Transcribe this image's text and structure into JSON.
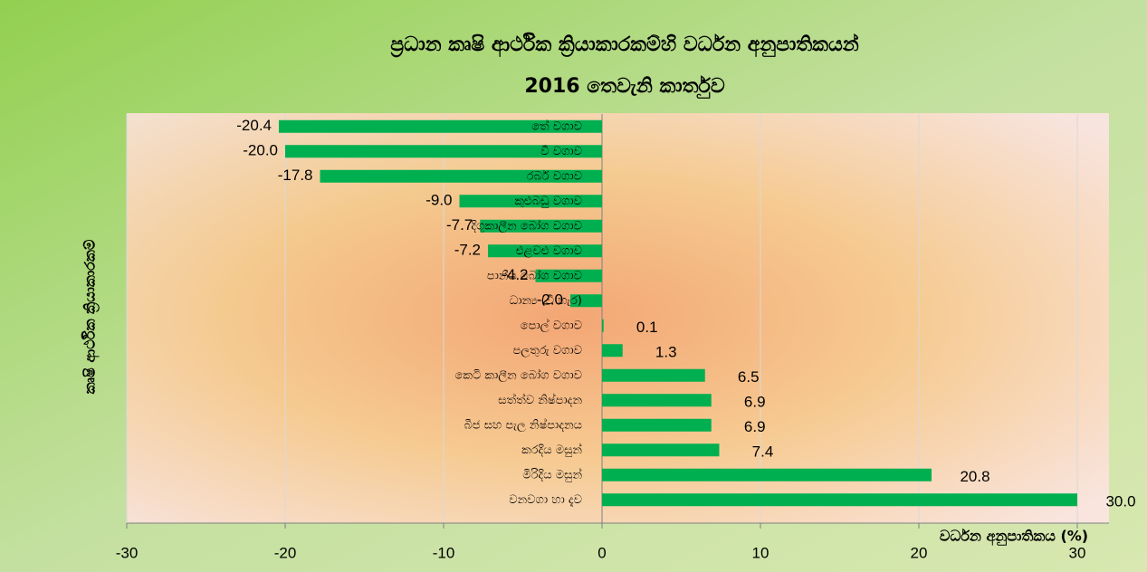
{
  "chart_data": {
    "type": "barh",
    "title": "ප්‍රධාන කෘෂි ආර්ථික ක්‍රියාකාරකම්හි  වර්ධන අනුපාතිකයන්",
    "subtitle": "2016 තෙවැනි කාර්තුව",
    "x_label": "වර්ධන අනුපාතිකය (%)",
    "y_label": "කෘෂි ආර්ථික ක්‍රියාකාරකම්",
    "categories": [
      "තේ වගාව",
      "වී වගාව",
      "රබර් වගාව",
      "කුළුබඩු වගාව",
      "දිගුකාලීන බෝග වගාව",
      "එළවළු වගාව",
      "පානීය බෝග වගාව",
      "ධාන්‍ය (වී හැර)",
      "පොල් වගාව",
      "පලතුරු වගාව",
      "කෙටි කාලීන බෝග වගාව",
      "සත්ත්ව නිෂ්පාදන",
      "බීජ සහ පැල නිෂ්පාදනය",
      "කරදිය මසුන්",
      "මිරිදිය මසුන්",
      "වනවගා හා දැව"
    ],
    "values": [
      -20.4,
      -20.0,
      -17.8,
      -9.0,
      -7.7,
      -7.2,
      -4.2,
      -2.0,
      0.1,
      1.3,
      6.5,
      6.9,
      6.9,
      7.4,
      20.8,
      30.0
    ],
    "value_labels": [
      "-20.4",
      "-20.0",
      "-17.8",
      "-9.0",
      "-7.7",
      "-7.2",
      "-4.2",
      "-2.0",
      "0.1",
      "1.3",
      "6.5",
      "6.9",
      "6.9",
      "7.4",
      "20.8",
      "30.0"
    ],
    "color": "#00b050",
    "xlim": [
      -30,
      30
    ],
    "xticks": [
      -30,
      -20,
      -10,
      0,
      10,
      20,
      30
    ],
    "grid": true
  }
}
